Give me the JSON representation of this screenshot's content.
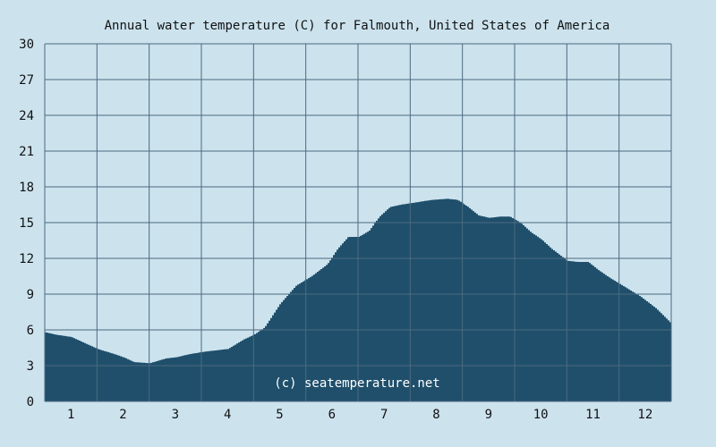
{
  "chart_data": {
    "type": "area",
    "title": "Annual water temperature (C) for Falmouth, United States of America",
    "xlabel": "",
    "ylabel": "",
    "xlim": [
      0.5,
      12.5
    ],
    "ylim": [
      0,
      30
    ],
    "y_ticks": [
      "0",
      "3",
      "6",
      "9",
      "12",
      "15",
      "18",
      "21",
      "24",
      "27",
      "30"
    ],
    "x_ticks": [
      "1",
      "2",
      "3",
      "4",
      "5",
      "6",
      "7",
      "8",
      "9",
      "10",
      "11",
      "12"
    ],
    "grid": true,
    "watermark": "(c) seatemperature.net",
    "x": [
      0.5,
      0.7,
      1.0,
      1.2,
      1.5,
      1.8,
      2.0,
      2.2,
      2.5,
      2.8,
      3.0,
      3.3,
      3.6,
      4.0,
      4.3,
      4.5,
      4.7,
      5.0,
      5.3,
      5.6,
      5.9,
      6.1,
      6.3,
      6.5,
      6.7,
      6.9,
      7.1,
      7.3,
      7.6,
      7.9,
      8.2,
      8.4,
      8.6,
      8.8,
      9.0,
      9.2,
      9.4,
      9.6,
      9.8,
      10.0,
      10.2,
      10.5,
      10.7,
      10.9,
      11.1,
      11.3,
      11.6,
      11.9,
      12.2,
      12.5
    ],
    "values": [
      5.8,
      5.6,
      5.4,
      5.0,
      4.4,
      4.0,
      3.7,
      3.3,
      3.2,
      3.6,
      3.7,
      4.0,
      4.2,
      4.4,
      5.2,
      5.6,
      6.2,
      8.2,
      9.7,
      10.5,
      11.5,
      12.8,
      13.8,
      13.8,
      14.3,
      15.5,
      16.3,
      16.5,
      16.7,
      16.9,
      17.0,
      16.9,
      16.3,
      15.6,
      15.4,
      15.5,
      15.5,
      15.0,
      14.2,
      13.6,
      12.8,
      11.8,
      11.7,
      11.7,
      11.0,
      10.4,
      9.6,
      8.8,
      7.8,
      6.5
    ],
    "colors": {
      "background": "#cce3ee",
      "area": "#1f4f6b",
      "grid": "#4d6a80",
      "text": "#111111",
      "watermark": "#ffffff"
    }
  }
}
